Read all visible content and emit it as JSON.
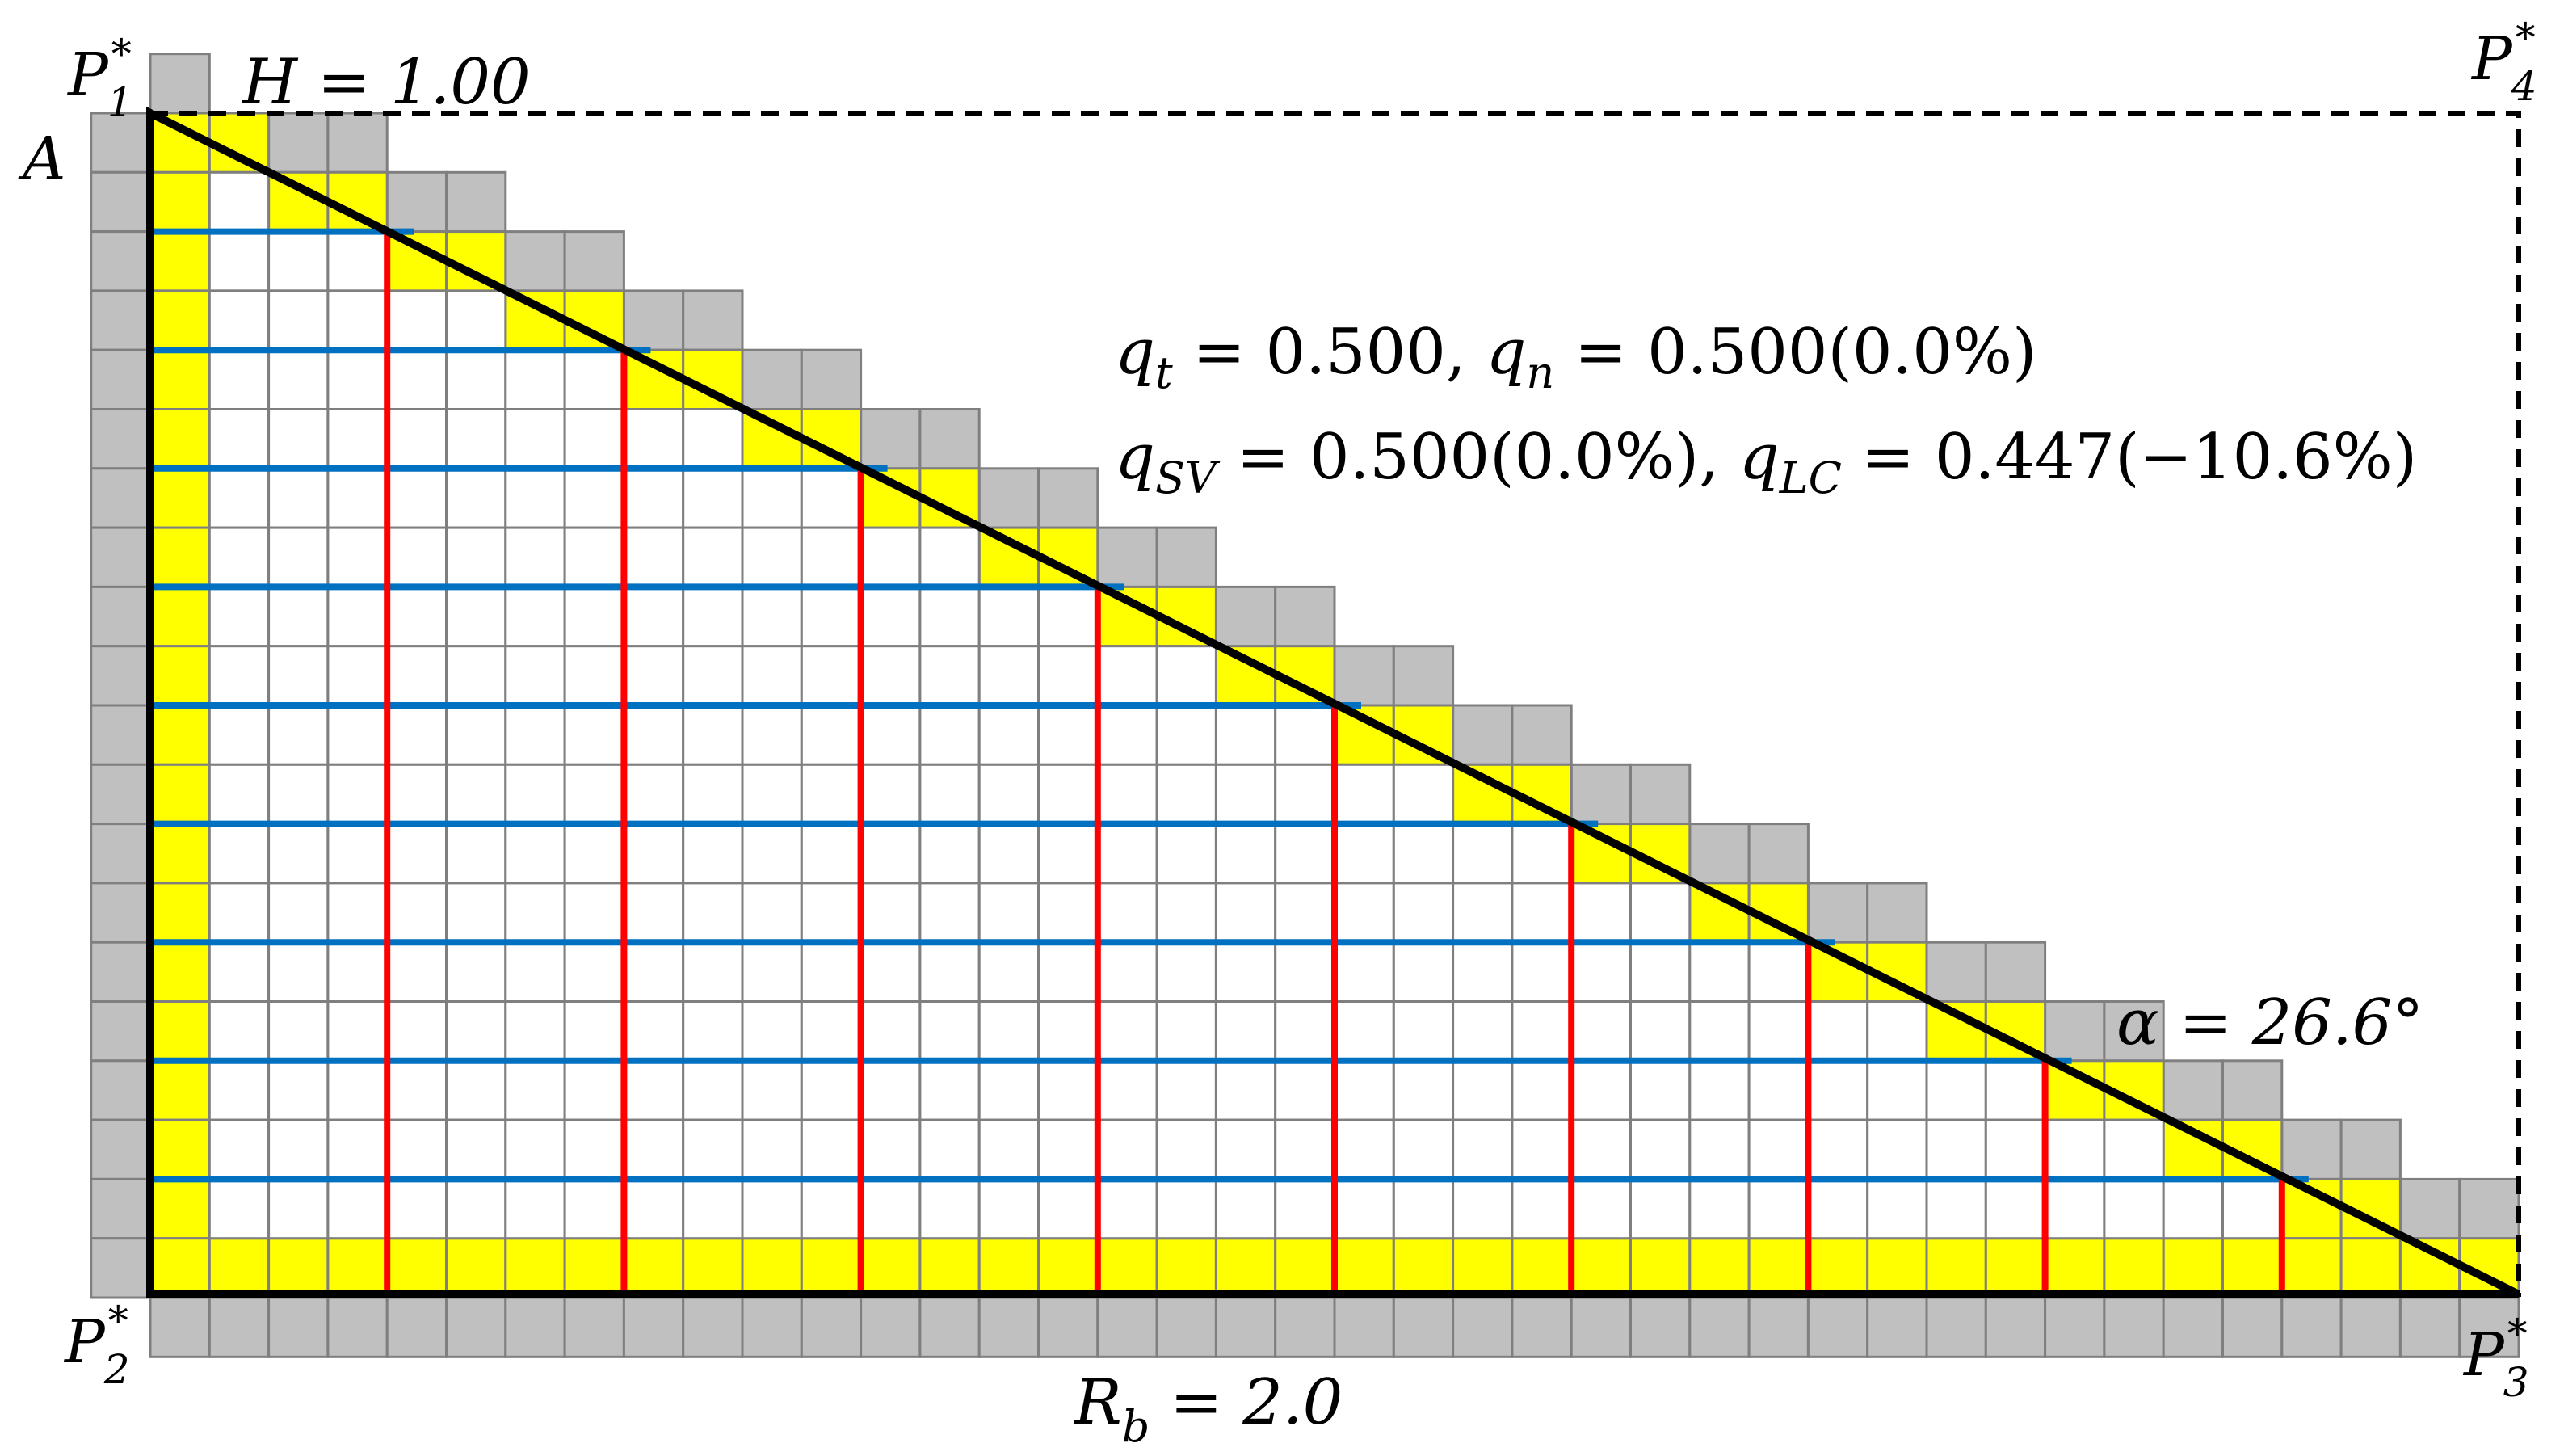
{
  "figure": {
    "corner_p1": {
      "base": "P",
      "sub": "1",
      "sup": "*"
    },
    "corner_p2": {
      "base": "P",
      "sub": "2",
      "sup": "*"
    },
    "corner_p3": {
      "base": "P",
      "sub": "3",
      "sup": "*"
    },
    "corner_p4": {
      "base": "P",
      "sub": "4",
      "sup": "*"
    },
    "point_a": "A",
    "height_label": "H = 1.00",
    "base_label": {
      "base": "R",
      "sub": "b",
      "rest": " = 2.0"
    },
    "angle_label": "α = 26.6°",
    "equation_line_1": {
      "qt_sub": "t",
      "qt_value": " = 0.500, ",
      "qn_sub": "n",
      "qn_value": " = 0.500(0.0%)"
    },
    "equation_line_2": {
      "qsv_sub": "SV",
      "qsv_value": " = 0.500(0.0%), ",
      "qlc_sub": "LC",
      "qlc_value": " = 0.447(−10.6%)"
    },
    "q_symbol": "q"
  },
  "colors": {
    "boundary_cell": "#c0c0c0",
    "interface_cell": "#ffff00",
    "grid_line": "#7f7f7f",
    "horizontal_segments": "#0070c0",
    "vertical_segments": "#ff0000",
    "triangle_outline": "#000000"
  }
}
